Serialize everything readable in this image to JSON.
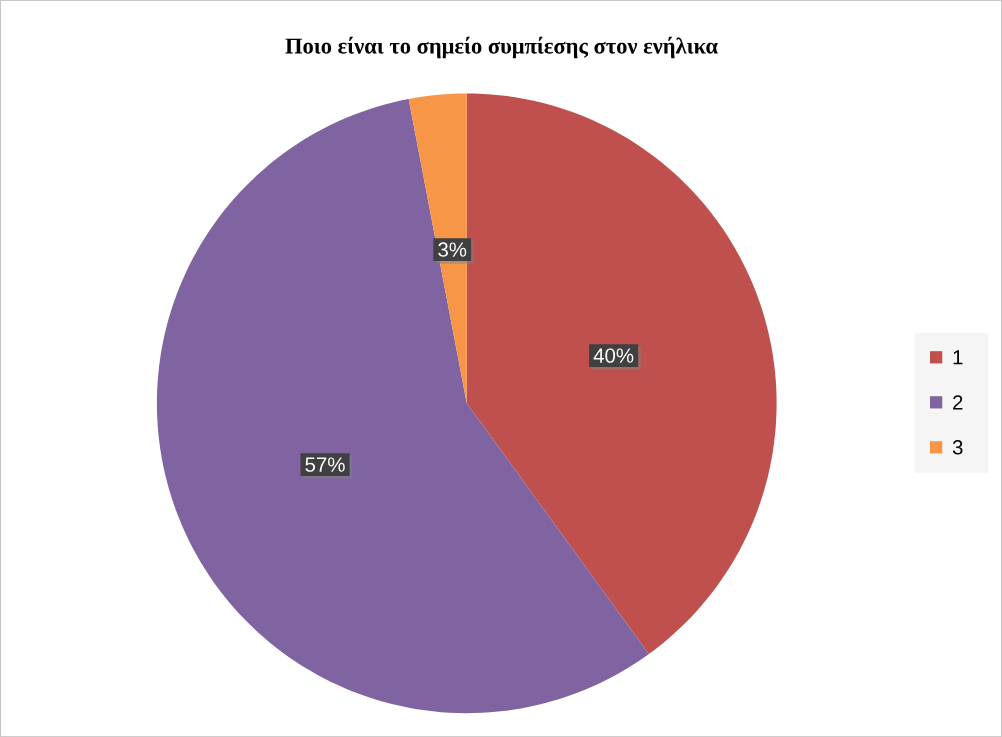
{
  "chart_data": {
    "type": "pie",
    "title": "Ποιο είναι το σημείο συμπίεσης στον ενήλικα",
    "categories": [
      "1",
      "2",
      "3"
    ],
    "values": [
      40,
      57,
      3
    ],
    "value_labels": [
      "40%",
      "57%",
      "3%"
    ],
    "colors": [
      "#c0504d",
      "#8064a2",
      "#f79646"
    ],
    "legend": "right"
  }
}
